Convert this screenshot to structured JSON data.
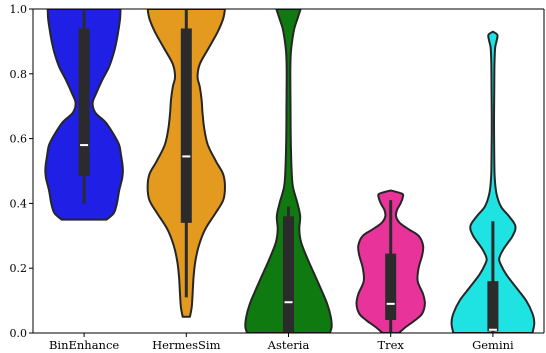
{
  "chart_data": {
    "type": "violin",
    "title": "",
    "xlabel": "",
    "ylabel": "",
    "ylim": [
      0,
      1
    ],
    "yticks": [
      "0.0",
      "0.2",
      "0.4",
      "0.6",
      "0.8",
      "1.0"
    ],
    "categories": [
      "BinEnhance",
      "HermesSim",
      "Asteria",
      "Trex",
      "Gemini"
    ],
    "colors": [
      "#1f1fe6",
      "#e39a1f",
      "#0f7a0f",
      "#e8349a",
      "#1fe3e3"
    ],
    "series": [
      {
        "category": "BinEnhance",
        "min": 0.4,
        "q1": 0.485,
        "median": 0.58,
        "q3": 0.94,
        "max": 1.0,
        "profile": [
          [
            0.35,
            0.5
          ],
          [
            0.37,
            0.66
          ],
          [
            0.4,
            0.73
          ],
          [
            0.44,
            0.78
          ],
          [
            0.48,
            0.85
          ],
          [
            0.51,
            0.86
          ],
          [
            0.55,
            0.82
          ],
          [
            0.58,
            0.78
          ],
          [
            0.61,
            0.67
          ],
          [
            0.65,
            0.48
          ],
          [
            0.68,
            0.25
          ],
          [
            0.71,
            0.19
          ],
          [
            0.74,
            0.27
          ],
          [
            0.78,
            0.4
          ],
          [
            0.82,
            0.55
          ],
          [
            0.86,
            0.65
          ],
          [
            0.9,
            0.72
          ],
          [
            0.94,
            0.77
          ],
          [
            0.97,
            0.8
          ],
          [
            1.0,
            0.81
          ]
        ]
      },
      {
        "category": "HermesSim",
        "min": 0.11,
        "q1": 0.34,
        "median": 0.545,
        "q3": 0.94,
        "max": 1.0,
        "profile": [
          [
            0.05,
            0.08
          ],
          [
            0.08,
            0.12
          ],
          [
            0.12,
            0.14
          ],
          [
            0.17,
            0.16
          ],
          [
            0.22,
            0.2
          ],
          [
            0.27,
            0.28
          ],
          [
            0.32,
            0.42
          ],
          [
            0.37,
            0.65
          ],
          [
            0.41,
            0.82
          ],
          [
            0.45,
            0.86
          ],
          [
            0.49,
            0.82
          ],
          [
            0.53,
            0.66
          ],
          [
            0.58,
            0.48
          ],
          [
            0.63,
            0.4
          ],
          [
            0.68,
            0.36
          ],
          [
            0.72,
            0.34
          ],
          [
            0.76,
            0.3
          ],
          [
            0.79,
            0.25
          ],
          [
            0.83,
            0.3
          ],
          [
            0.88,
            0.5
          ],
          [
            0.93,
            0.7
          ],
          [
            0.97,
            0.82
          ],
          [
            1.0,
            0.86
          ]
        ]
      },
      {
        "category": "Asteria",
        "min": 0.0,
        "q1": 0.0,
        "median": 0.095,
        "q3": 0.36,
        "max": 0.39,
        "profile": [
          [
            0.0,
            0.92
          ],
          [
            0.02,
            0.96
          ],
          [
            0.05,
            0.94
          ],
          [
            0.09,
            0.86
          ],
          [
            0.13,
            0.74
          ],
          [
            0.18,
            0.58
          ],
          [
            0.23,
            0.42
          ],
          [
            0.28,
            0.28
          ],
          [
            0.32,
            0.24
          ],
          [
            0.36,
            0.26
          ],
          [
            0.4,
            0.2
          ],
          [
            0.45,
            0.1
          ],
          [
            0.5,
            0.07
          ],
          [
            0.6,
            0.05
          ],
          [
            0.7,
            0.045
          ],
          [
            0.8,
            0.04
          ],
          [
            0.86,
            0.05
          ],
          [
            0.9,
            0.08
          ],
          [
            0.94,
            0.13
          ],
          [
            0.97,
            0.2
          ],
          [
            1.0,
            0.27
          ]
        ]
      },
      {
        "category": "Trex",
        "min": 0.0,
        "q1": 0.04,
        "median": 0.09,
        "q3": 0.245,
        "max": 0.41,
        "profile": [
          [
            0.0,
            0.18
          ],
          [
            0.02,
            0.35
          ],
          [
            0.04,
            0.55
          ],
          [
            0.06,
            0.7
          ],
          [
            0.09,
            0.76
          ],
          [
            0.12,
            0.72
          ],
          [
            0.16,
            0.6
          ],
          [
            0.2,
            0.62
          ],
          [
            0.24,
            0.7
          ],
          [
            0.27,
            0.72
          ],
          [
            0.3,
            0.62
          ],
          [
            0.32,
            0.4
          ],
          [
            0.34,
            0.2
          ],
          [
            0.36,
            0.12
          ],
          [
            0.38,
            0.14
          ],
          [
            0.4,
            0.22
          ],
          [
            0.42,
            0.27
          ],
          [
            0.43,
            0.25
          ],
          [
            0.44,
            0.0
          ]
        ]
      },
      {
        "category": "Gemini",
        "min": 0.0,
        "q1": 0.005,
        "median": 0.01,
        "q3": 0.16,
        "max": 0.345,
        "profile": [
          [
            0.0,
            0.88
          ],
          [
            0.03,
            0.92
          ],
          [
            0.06,
            0.88
          ],
          [
            0.1,
            0.74
          ],
          [
            0.14,
            0.52
          ],
          [
            0.18,
            0.3
          ],
          [
            0.21,
            0.18
          ],
          [
            0.23,
            0.14
          ],
          [
            0.26,
            0.24
          ],
          [
            0.3,
            0.44
          ],
          [
            0.33,
            0.5
          ],
          [
            0.36,
            0.36
          ],
          [
            0.39,
            0.18
          ],
          [
            0.43,
            0.08
          ],
          [
            0.48,
            0.04
          ],
          [
            0.55,
            0.03
          ],
          [
            0.65,
            0.025
          ],
          [
            0.75,
            0.03
          ],
          [
            0.83,
            0.035
          ],
          [
            0.88,
            0.05
          ],
          [
            0.9,
            0.08
          ],
          [
            0.92,
            0.1
          ],
          [
            0.93,
            0.0
          ]
        ]
      }
    ]
  }
}
